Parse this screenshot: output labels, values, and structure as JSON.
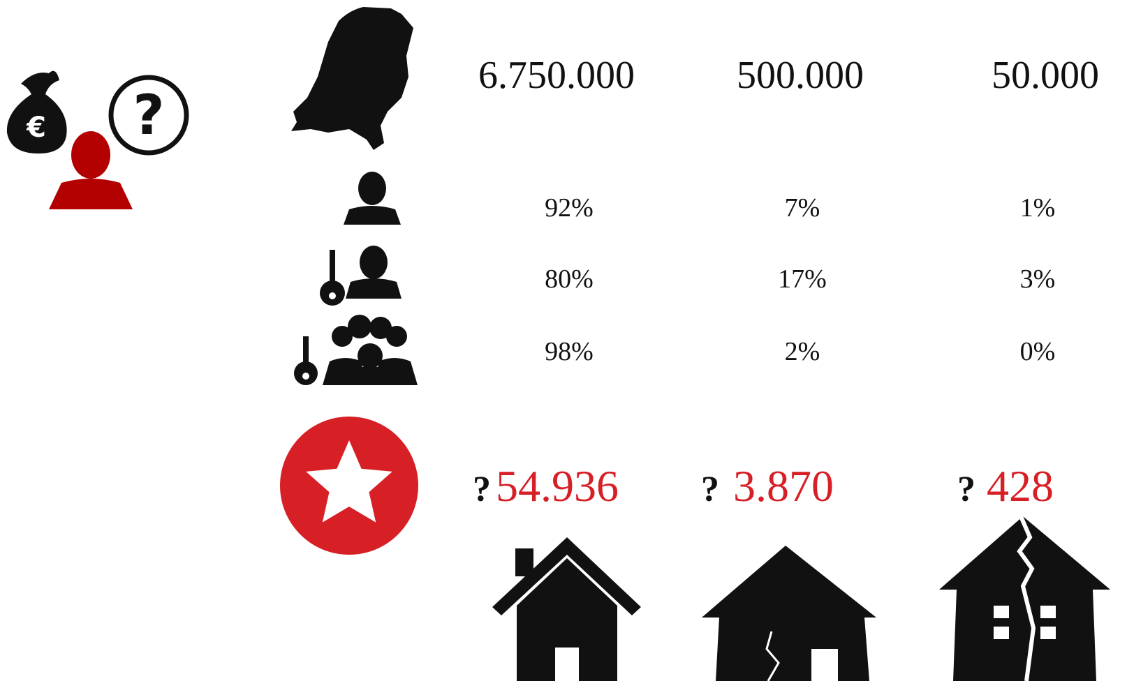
{
  "columns": [
    {
      "total": "6.750.000",
      "shares": [
        "92%",
        "80%",
        "98%"
      ],
      "question": "?",
      "count": "54.936"
    },
    {
      "total": "500.000",
      "shares": [
        "7%",
        "17%",
        "2%"
      ],
      "question": "?",
      "count": "3.870"
    },
    {
      "total": "50.000",
      "shares": [
        "1%",
        "3%",
        "0%"
      ],
      "question": "?",
      "count": "428"
    }
  ]
}
